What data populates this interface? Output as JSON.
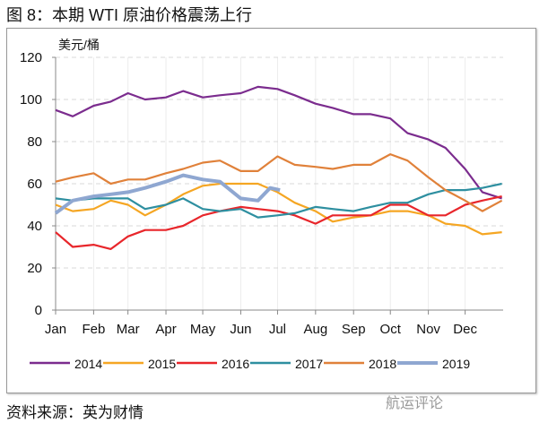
{
  "title": "图 8：本期 WTI 原油价格震荡上行",
  "source": "资料来源：英为财情",
  "watermark": "航运评论",
  "chart_data": {
    "type": "line",
    "ylabel": "美元/桶",
    "ylim": [
      0,
      120
    ],
    "yticks": [
      0,
      20,
      40,
      60,
      80,
      100,
      120
    ],
    "xticks": [
      "Jan",
      "Feb",
      "Mar",
      "Apr",
      "May",
      "Jun",
      "Jul",
      "Aug",
      "Sep",
      "Oct",
      "Nov",
      "Dec"
    ],
    "grid": "horizontal dashed + vertical light",
    "legend": "bottom",
    "x": [
      "01-01",
      "01-15",
      "02-01",
      "02-15",
      "03-01",
      "03-15",
      "04-01",
      "04-15",
      "05-01",
      "05-15",
      "06-01",
      "06-15",
      "07-01",
      "07-15",
      "08-01",
      "08-15",
      "09-01",
      "09-15",
      "10-01",
      "10-15",
      "11-01",
      "11-15",
      "12-01",
      "12-15",
      "12-31"
    ],
    "series": [
      {
        "name": "2014",
        "color": "#7B2C8E",
        "values": [
          95,
          92,
          97,
          99,
          103,
          100,
          101,
          104,
          101,
          102,
          103,
          106,
          105,
          102,
          98,
          96,
          93,
          93,
          91,
          84,
          81,
          77,
          67,
          56,
          53
        ]
      },
      {
        "name": "2015",
        "color": "#F5A623",
        "values": [
          50,
          47,
          48,
          52,
          50,
          45,
          50,
          55,
          59,
          60,
          60,
          60,
          56,
          51,
          47,
          42,
          44,
          45,
          47,
          47,
          45,
          41,
          40,
          36,
          37
        ]
      },
      {
        "name": "2016",
        "color": "#E8262B",
        "values": [
          37,
          30,
          31,
          29,
          35,
          38,
          38,
          40,
          45,
          47,
          49,
          48,
          47,
          45,
          41,
          45,
          45,
          45,
          50,
          50,
          45,
          45,
          50,
          52,
          54
        ]
      },
      {
        "name": "2017",
        "color": "#2E8FA0",
        "values": [
          53,
          52,
          53,
          53,
          53,
          48,
          50,
          53,
          48,
          47,
          48,
          44,
          45,
          46,
          49,
          48,
          47,
          49,
          51,
          51,
          55,
          57,
          57,
          58,
          60
        ]
      },
      {
        "name": "2018",
        "color": "#E0813A",
        "values": [
          61,
          63,
          65,
          60,
          62,
          62,
          65,
          67,
          70,
          71,
          66,
          66,
          73,
          69,
          68,
          67,
          69,
          69,
          74,
          71,
          63,
          57,
          52,
          47,
          52
        ]
      },
      {
        "name": "2019",
        "color": "#8FA7D1",
        "x": [
          "01-01",
          "01-15",
          "02-01",
          "02-15",
          "03-01",
          "03-15",
          "04-01",
          "04-15",
          "05-01",
          "05-15",
          "06-01",
          "06-15",
          "06-25",
          "07-03"
        ],
        "values": [
          46,
          52,
          54,
          55,
          56,
          58,
          61,
          64,
          62,
          61,
          53,
          52,
          58,
          57
        ]
      }
    ]
  }
}
